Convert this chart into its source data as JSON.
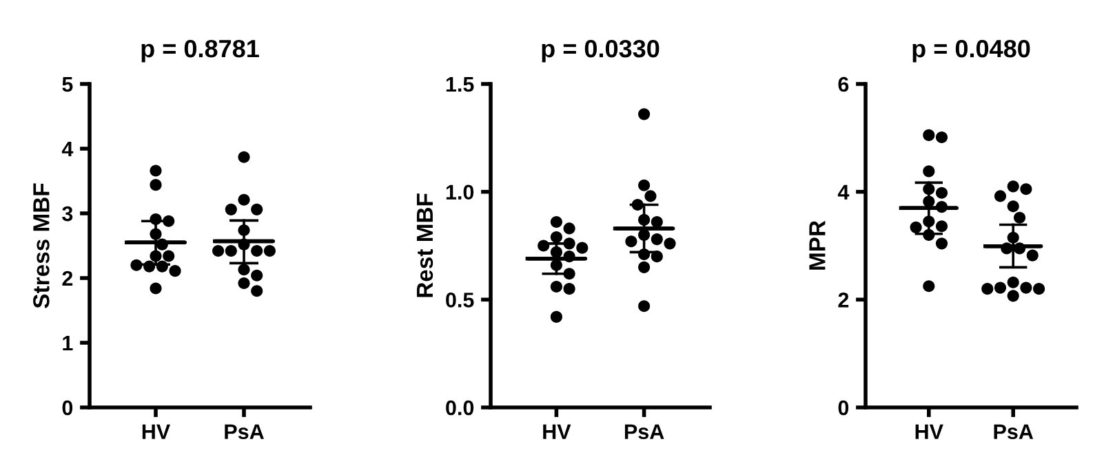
{
  "chart_data": [
    {
      "type": "scatter",
      "title": "p = 0.8781",
      "ylabel": "Stress MBF",
      "categories": [
        "HV",
        "PsA"
      ],
      "ylim": [
        0,
        5
      ],
      "yticks": [
        0,
        1,
        2,
        3,
        4,
        5
      ],
      "grid": false,
      "legend": false,
      "series": [
        {
          "color": "#000000",
          "marker": "circle",
          "x": [
            "HV",
            "HV",
            "HV",
            "HV",
            "HV",
            "HV",
            "HV",
            "HV",
            "HV",
            "HV",
            "HV",
            "HV",
            "HV",
            "PsA",
            "PsA",
            "PsA",
            "PsA",
            "PsA",
            "PsA",
            "PsA",
            "PsA",
            "PsA",
            "PsA",
            "PsA",
            "PsA",
            "PsA",
            "PsA"
          ],
          "values": [
            3.66,
            3.44,
            2.91,
            2.88,
            2.68,
            2.52,
            2.34,
            2.34,
            2.18,
            2.18,
            2.11,
            1.84,
            2.2,
            3.87,
            3.21,
            3.06,
            3.06,
            2.74,
            2.52,
            2.42,
            2.42,
            2.42,
            2.42,
            2.13,
            2.04,
            1.92,
            1.8
          ]
        },
        {
          "type": "box",
          "color": "#000000",
          "boxes": [
            {
              "low": 2.21,
              "q1": 2.55,
              "median": 2.55,
              "q3": 2.55,
              "high": 2.88
            },
            {
              "low": 2.23,
              "q1": 2.57,
              "median": 2.57,
              "q3": 2.57,
              "high": 2.89
            }
          ]
        }
      ]
    },
    {
      "type": "scatter",
      "title": "p = 0.0330",
      "ylabel": "Rest MBF",
      "categories": [
        "HV",
        "PsA"
      ],
      "ylim": [
        0,
        1.5
      ],
      "yticks": [
        {
          "value": 0,
          "label": "0.0"
        },
        0.5,
        {
          "value": 1,
          "label": "1.0"
        },
        1.5
      ],
      "grid": false,
      "legend": false,
      "series": [
        {
          "color": "#000000",
          "marker": "circle",
          "x": [
            "HV",
            "HV",
            "HV",
            "HV",
            "HV",
            "HV",
            "HV",
            "HV",
            "HV",
            "HV",
            "HV",
            "HV",
            "HV",
            "PsA",
            "PsA",
            "PsA",
            "PsA",
            "PsA",
            "PsA",
            "PsA",
            "PsA",
            "PsA",
            "PsA",
            "PsA",
            "PsA",
            "PsA",
            "PsA"
          ],
          "values": [
            0.86,
            0.83,
            0.79,
            0.76,
            0.75,
            0.74,
            0.72,
            0.7,
            0.66,
            0.62,
            0.56,
            0.55,
            0.42,
            1.36,
            1.03,
            0.98,
            0.94,
            0.87,
            0.86,
            0.8,
            0.78,
            0.77,
            0.76,
            0.71,
            0.7,
            0.65,
            0.47
          ]
        },
        {
          "type": "box",
          "color": "#000000",
          "boxes": [
            {
              "low": 0.62,
              "q1": 0.69,
              "median": 0.69,
              "q3": 0.69,
              "high": 0.76
            },
            {
              "low": 0.72,
              "q1": 0.83,
              "median": 0.83,
              "q3": 0.83,
              "high": 0.94
            }
          ]
        }
      ]
    },
    {
      "type": "scatter",
      "title": "p = 0.0480",
      "ylabel": "MPR",
      "categories": [
        "HV",
        "PsA"
      ],
      "ylim": [
        0,
        6
      ],
      "yticks": [
        0,
        2,
        4,
        6
      ],
      "grid": false,
      "legend": false,
      "series": [
        {
          "color": "#000000",
          "marker": "circle",
          "x": [
            "HV",
            "HV",
            "HV",
            "HV",
            "HV",
            "HV",
            "HV",
            "HV",
            "HV",
            "HV",
            "HV",
            "HV",
            "HV",
            "PsA",
            "PsA",
            "PsA",
            "PsA",
            "PsA",
            "PsA",
            "PsA",
            "PsA",
            "PsA",
            "PsA",
            "PsA",
            "PsA",
            "PsA",
            "PsA",
            "PsA"
          ],
          "values": [
            5.05,
            5.01,
            4.38,
            4.05,
            3.98,
            3.82,
            3.72,
            3.45,
            3.36,
            3.34,
            3.2,
            3.04,
            2.25,
            4.1,
            4.05,
            3.92,
            3.73,
            3.52,
            3.15,
            2.95,
            2.95,
            2.82,
            2.32,
            2.22,
            2.22,
            2.2,
            2.2,
            2.07
          ]
        },
        {
          "type": "box",
          "color": "#000000",
          "boxes": [
            {
              "low": 3.22,
              "q1": 3.7,
              "median": 3.7,
              "q3": 3.7,
              "high": 4.17
            },
            {
              "low": 2.6,
              "q1": 2.99,
              "median": 2.99,
              "q3": 2.99,
              "high": 3.39
            }
          ]
        }
      ]
    }
  ]
}
